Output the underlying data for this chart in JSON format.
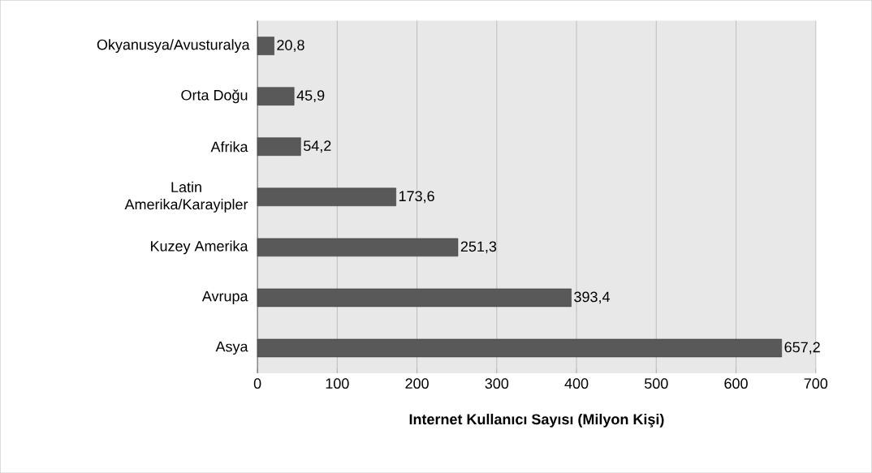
{
  "chart_data": {
    "type": "bar",
    "orientation": "horizontal",
    "xlabel": "Internet Kullanıcı Sayısı (Milyon Kişi)",
    "categories": [
      "Okyanusya/Avusturalya",
      "Orta Doğu",
      "Afrika",
      "Latin Amerika/Karayipler",
      "Kuzey Amerika",
      "Avrupa",
      "Asya"
    ],
    "values": [
      20.8,
      45.9,
      54.2,
      173.6,
      251.3,
      393.4,
      657.2
    ],
    "value_labels": [
      "20,8",
      "45,9",
      "54,2",
      "173,6",
      "251,3",
      "393,4",
      "657,2"
    ],
    "color": "#595959",
    "xlim": [
      0,
      700
    ],
    "xticks": [
      0,
      100,
      200,
      300,
      400,
      500,
      600,
      700
    ],
    "grid": "x"
  }
}
